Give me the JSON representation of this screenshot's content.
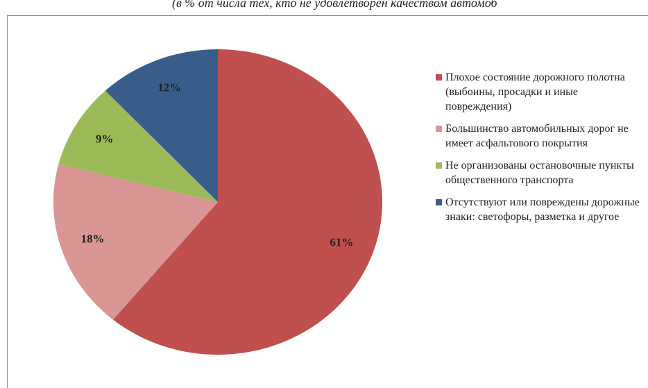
{
  "chart_data": {
    "type": "pie",
    "title": "(в % от числа тех, кто не удовлетворен качеством автомоб",
    "series": [
      {
        "name": "Плохое состояние дорожного полотна (выбоины, просадки и иные повреждения)",
        "color": "#c0504d",
        "values": [
          61
        ],
        "value_labels": [
          "61%"
        ]
      },
      {
        "name": "Большинство автомобильных дорог не имеет асфальтового покрытия",
        "color": "#d99694",
        "values": [
          18
        ],
        "value_labels": [
          "18%"
        ]
      },
      {
        "name": "Не организованы остановочные пункты общественного транспорта",
        "color": "#9bbb59",
        "values": [
          9
        ],
        "value_labels": [
          "9%"
        ]
      },
      {
        "name": "Отсутствуют или повреждены дорожные знаки: светофоры, разметка и другое",
        "color": "#385d8a",
        "values": [
          12
        ],
        "value_labels": [
          "12%"
        ]
      }
    ],
    "legend": "right"
  }
}
